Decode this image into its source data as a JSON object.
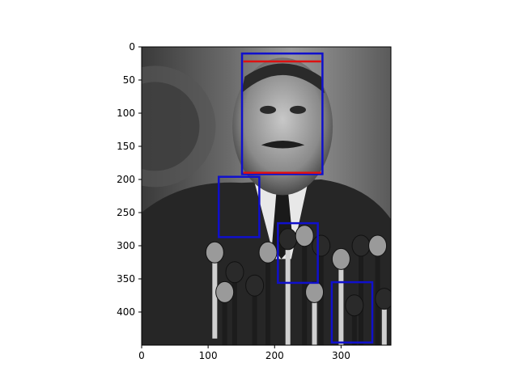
{
  "chart_data": {
    "type": "image",
    "title": "",
    "xlabel": "",
    "ylabel": "",
    "xlim": [
      0,
      375
    ],
    "ylim": [
      450,
      0
    ],
    "y_inverted": true,
    "xticks": [
      0,
      100,
      200,
      300
    ],
    "yticks": [
      0,
      50,
      100,
      150,
      200,
      250,
      300,
      350,
      400
    ],
    "grid": false,
    "image_content": "grayscale photo",
    "boxes": [
      {
        "x0": 151,
        "y0": 10,
        "x1": 272,
        "y1": 192,
        "color": "#1010cc"
      },
      {
        "x0": 116,
        "y0": 196,
        "x1": 177,
        "y1": 287,
        "color": "#1010cc"
      },
      {
        "x0": 205,
        "y0": 266,
        "x1": 265,
        "y1": 356,
        "color": "#1010cc"
      },
      {
        "x0": 286,
        "y0": 355,
        "x1": 347,
        "y1": 446,
        "color": "#1010cc"
      }
    ],
    "lines": [
      {
        "x0": 153,
        "y0": 22,
        "x1": 270,
        "y1": 22,
        "color": "#dd1111"
      },
      {
        "x0": 153,
        "y0": 190,
        "x1": 270,
        "y1": 190,
        "color": "#dd1111"
      }
    ]
  }
}
